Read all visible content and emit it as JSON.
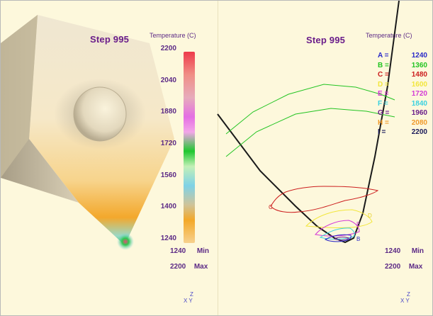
{
  "left": {
    "step_label": "Step 995",
    "temperature_label": "Temperature (C)",
    "scale_ticks": [
      "2200",
      "2040",
      "1880",
      "1720",
      "1560",
      "1400",
      "1240"
    ],
    "min_value": "1240",
    "min_label": "Min",
    "max_value": "2200",
    "max_label": "Max",
    "axes_z": "Z",
    "axes_xy": "X Y"
  },
  "right": {
    "step_label": "Step 995",
    "temperature_label": "Temperature (C)",
    "legend": [
      {
        "key": "A",
        "value": "1240",
        "color": "#2929c8"
      },
      {
        "key": "B",
        "value": "1360",
        "color": "#22c422"
      },
      {
        "key": "C",
        "value": "1480",
        "color": "#cc1d1d"
      },
      {
        "key": "D",
        "value": "1600",
        "color": "#f2e63b"
      },
      {
        "key": "E",
        "value": "1720",
        "color": "#d43ad6"
      },
      {
        "key": "F",
        "value": "1840",
        "color": "#3ad1e0"
      },
      {
        "key": "G",
        "value": "1960",
        "color": "#6a1d8a"
      },
      {
        "key": "H",
        "value": "2080",
        "color": "#f09a2a"
      },
      {
        "key": "I",
        "value": "2200",
        "color": "#1b1b5a"
      }
    ],
    "contour_labels": [
      "C",
      "D",
      "E",
      "B"
    ],
    "min_value": "1240",
    "min_label": "Min",
    "max_value": "2200",
    "max_label": "Max",
    "axes_z": "Z",
    "axes_xy": "X Y"
  }
}
